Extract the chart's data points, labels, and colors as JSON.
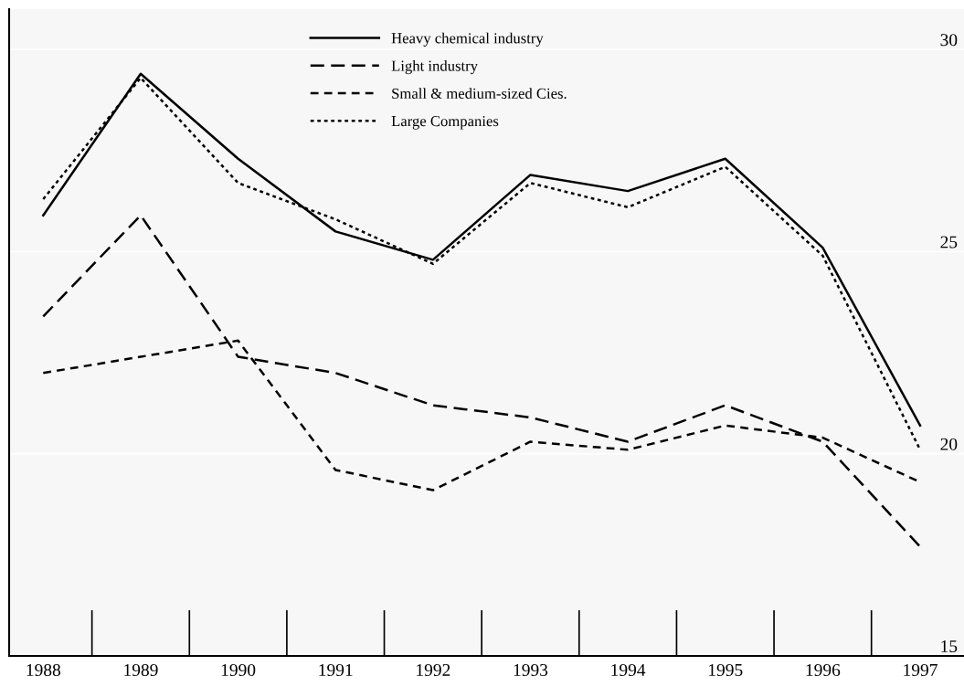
{
  "chart_data": {
    "type": "line",
    "categories": [
      "1988",
      "1989",
      "1990",
      "1991",
      "1992",
      "1993",
      "1994",
      "1995",
      "1996",
      "1997"
    ],
    "series": [
      {
        "name": "Heavy chemical industry",
        "color": "#000000",
        "line_style": "solid",
        "values": [
          25.9,
          29.4,
          27.3,
          25.5,
          24.8,
          26.9,
          26.5,
          27.3,
          25.1,
          20.7
        ]
      },
      {
        "name": "Light industry",
        "color": "#000000",
        "line_style": "dashed",
        "values": [
          23.4,
          25.9,
          22.4,
          22.0,
          21.2,
          20.9,
          20.3,
          21.2,
          20.3,
          17.7
        ]
      },
      {
        "name": "Small & medium-sized Cies.",
        "color": "#000000",
        "line_style": "dashed",
        "values": [
          22.0,
          22.4,
          22.8,
          19.6,
          19.1,
          20.3,
          20.1,
          20.7,
          20.4,
          19.3
        ]
      },
      {
        "name": "Large Companies",
        "color": "#000000",
        "line_style": "dotted",
        "values": [
          26.3,
          29.3,
          26.7,
          25.8,
          24.7,
          26.7,
          26.1,
          27.1,
          24.9,
          20.1
        ]
      }
    ],
    "ylim": [
      15,
      31
    ],
    "yticks": [
      15,
      20,
      25,
      30
    ],
    "grid": "y",
    "legend": "top",
    "marker": "none"
  }
}
